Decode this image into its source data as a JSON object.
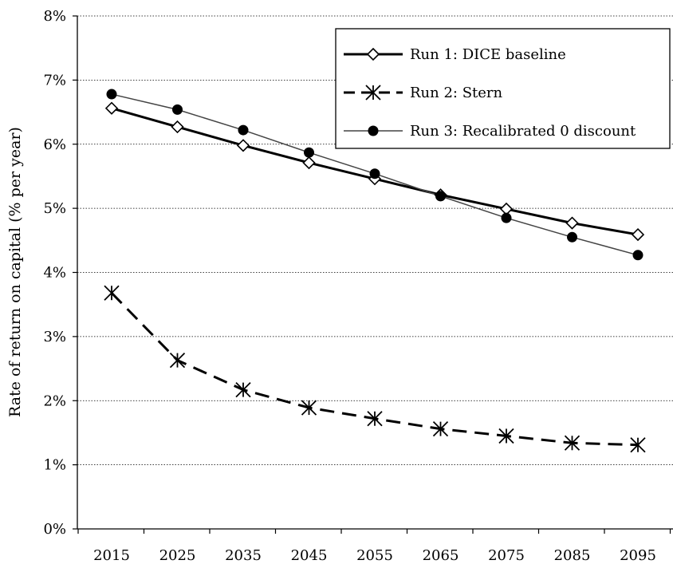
{
  "chart_data": {
    "type": "line",
    "title": "",
    "xlabel": "",
    "ylabel": "Rate of return on capital (% per year)",
    "categories": [
      "2015",
      "2025",
      "2035",
      "2045",
      "2055",
      "2065",
      "2075",
      "2085",
      "2095"
    ],
    "y_ticks": [
      "0%",
      "1%",
      "2%",
      "3%",
      "4%",
      "5%",
      "6%",
      "7%",
      "8%"
    ],
    "ylim": [
      0,
      8
    ],
    "grid": "horizontal dotted",
    "legend_position": "top-right",
    "series": [
      {
        "name": "Run 1: DICE baseline",
        "values": [
          6.56,
          6.27,
          5.98,
          5.71,
          5.46,
          5.21,
          4.99,
          4.77,
          4.59
        ],
        "line_style": "solid-thick",
        "marker": "open-diamond",
        "color": "#000000"
      },
      {
        "name": "Run 2: Stern",
        "values": [
          3.68,
          2.63,
          2.17,
          1.89,
          1.72,
          1.56,
          1.45,
          1.34,
          1.31
        ],
        "line_style": "dashed-thick",
        "marker": "asterisk",
        "color": "#000000"
      },
      {
        "name": "Run 3: Recalibrated 0 discount",
        "values": [
          6.78,
          6.54,
          6.22,
          5.87,
          5.54,
          5.19,
          4.85,
          4.55,
          4.27
        ],
        "line_style": "solid-thin",
        "marker": "filled-circle",
        "color": "#444444"
      }
    ]
  }
}
